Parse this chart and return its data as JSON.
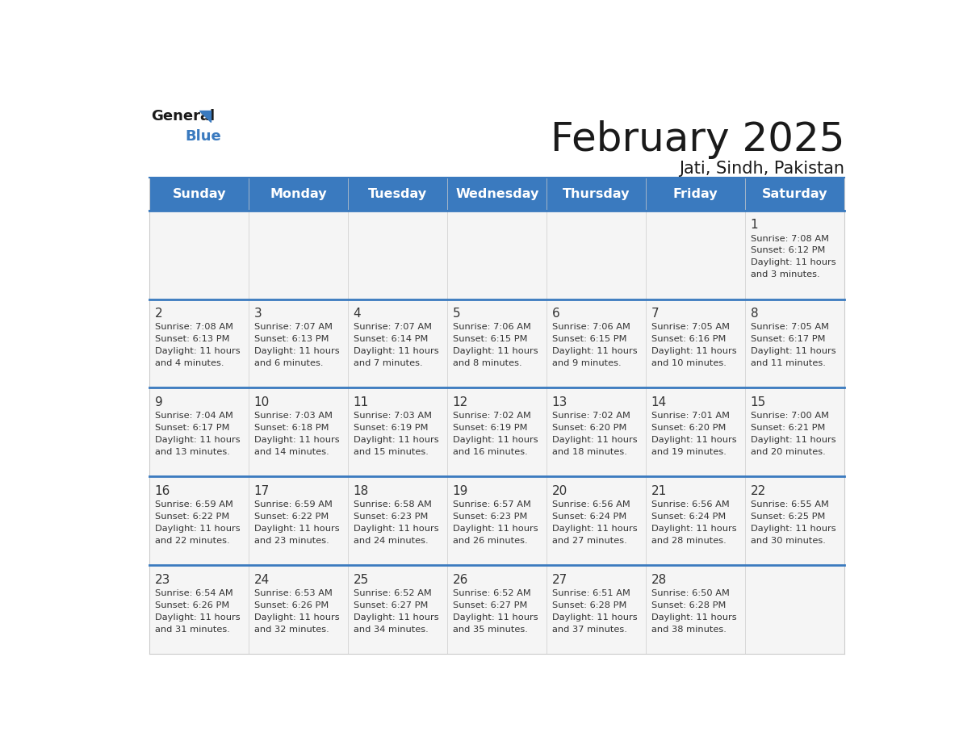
{
  "title": "February 2025",
  "subtitle": "Jati, Sindh, Pakistan",
  "header_color": "#3a7abf",
  "header_text_color": "#ffffff",
  "day_names": [
    "Sunday",
    "Monday",
    "Tuesday",
    "Wednesday",
    "Thursday",
    "Friday",
    "Saturday"
  ],
  "background_color": "#ffffff",
  "cell_bg_color": "#f5f5f5",
  "grid_line_color": "#3a7abf",
  "day_num_color": "#333333",
  "info_text_color": "#333333",
  "days": [
    {
      "day": 1,
      "col": 6,
      "row": 0,
      "sunrise": "7:08 AM",
      "sunset": "6:12 PM",
      "daylight": "11 hours and 3 minutes."
    },
    {
      "day": 2,
      "col": 0,
      "row": 1,
      "sunrise": "7:08 AM",
      "sunset": "6:13 PM",
      "daylight": "11 hours and 4 minutes."
    },
    {
      "day": 3,
      "col": 1,
      "row": 1,
      "sunrise": "7:07 AM",
      "sunset": "6:13 PM",
      "daylight": "11 hours and 6 minutes."
    },
    {
      "day": 4,
      "col": 2,
      "row": 1,
      "sunrise": "7:07 AM",
      "sunset": "6:14 PM",
      "daylight": "11 hours and 7 minutes."
    },
    {
      "day": 5,
      "col": 3,
      "row": 1,
      "sunrise": "7:06 AM",
      "sunset": "6:15 PM",
      "daylight": "11 hours and 8 minutes."
    },
    {
      "day": 6,
      "col": 4,
      "row": 1,
      "sunrise": "7:06 AM",
      "sunset": "6:15 PM",
      "daylight": "11 hours and 9 minutes."
    },
    {
      "day": 7,
      "col": 5,
      "row": 1,
      "sunrise": "7:05 AM",
      "sunset": "6:16 PM",
      "daylight": "11 hours and 10 minutes."
    },
    {
      "day": 8,
      "col": 6,
      "row": 1,
      "sunrise": "7:05 AM",
      "sunset": "6:17 PM",
      "daylight": "11 hours and 11 minutes."
    },
    {
      "day": 9,
      "col": 0,
      "row": 2,
      "sunrise": "7:04 AM",
      "sunset": "6:17 PM",
      "daylight": "11 hours and 13 minutes."
    },
    {
      "day": 10,
      "col": 1,
      "row": 2,
      "sunrise": "7:03 AM",
      "sunset": "6:18 PM",
      "daylight": "11 hours and 14 minutes."
    },
    {
      "day": 11,
      "col": 2,
      "row": 2,
      "sunrise": "7:03 AM",
      "sunset": "6:19 PM",
      "daylight": "11 hours and 15 minutes."
    },
    {
      "day": 12,
      "col": 3,
      "row": 2,
      "sunrise": "7:02 AM",
      "sunset": "6:19 PM",
      "daylight": "11 hours and 16 minutes."
    },
    {
      "day": 13,
      "col": 4,
      "row": 2,
      "sunrise": "7:02 AM",
      "sunset": "6:20 PM",
      "daylight": "11 hours and 18 minutes."
    },
    {
      "day": 14,
      "col": 5,
      "row": 2,
      "sunrise": "7:01 AM",
      "sunset": "6:20 PM",
      "daylight": "11 hours and 19 minutes."
    },
    {
      "day": 15,
      "col": 6,
      "row": 2,
      "sunrise": "7:00 AM",
      "sunset": "6:21 PM",
      "daylight": "11 hours and 20 minutes."
    },
    {
      "day": 16,
      "col": 0,
      "row": 3,
      "sunrise": "6:59 AM",
      "sunset": "6:22 PM",
      "daylight": "11 hours and 22 minutes."
    },
    {
      "day": 17,
      "col": 1,
      "row": 3,
      "sunrise": "6:59 AM",
      "sunset": "6:22 PM",
      "daylight": "11 hours and 23 minutes."
    },
    {
      "day": 18,
      "col": 2,
      "row": 3,
      "sunrise": "6:58 AM",
      "sunset": "6:23 PM",
      "daylight": "11 hours and 24 minutes."
    },
    {
      "day": 19,
      "col": 3,
      "row": 3,
      "sunrise": "6:57 AM",
      "sunset": "6:23 PM",
      "daylight": "11 hours and 26 minutes."
    },
    {
      "day": 20,
      "col": 4,
      "row": 3,
      "sunrise": "6:56 AM",
      "sunset": "6:24 PM",
      "daylight": "11 hours and 27 minutes."
    },
    {
      "day": 21,
      "col": 5,
      "row": 3,
      "sunrise": "6:56 AM",
      "sunset": "6:24 PM",
      "daylight": "11 hours and 28 minutes."
    },
    {
      "day": 22,
      "col": 6,
      "row": 3,
      "sunrise": "6:55 AM",
      "sunset": "6:25 PM",
      "daylight": "11 hours and 30 minutes."
    },
    {
      "day": 23,
      "col": 0,
      "row": 4,
      "sunrise": "6:54 AM",
      "sunset": "6:26 PM",
      "daylight": "11 hours and 31 minutes."
    },
    {
      "day": 24,
      "col": 1,
      "row": 4,
      "sunrise": "6:53 AM",
      "sunset": "6:26 PM",
      "daylight": "11 hours and 32 minutes."
    },
    {
      "day": 25,
      "col": 2,
      "row": 4,
      "sunrise": "6:52 AM",
      "sunset": "6:27 PM",
      "daylight": "11 hours and 34 minutes."
    },
    {
      "day": 26,
      "col": 3,
      "row": 4,
      "sunrise": "6:52 AM",
      "sunset": "6:27 PM",
      "daylight": "11 hours and 35 minutes."
    },
    {
      "day": 27,
      "col": 4,
      "row": 4,
      "sunrise": "6:51 AM",
      "sunset": "6:28 PM",
      "daylight": "11 hours and 37 minutes."
    },
    {
      "day": 28,
      "col": 5,
      "row": 4,
      "sunrise": "6:50 AM",
      "sunset": "6:28 PM",
      "daylight": "11 hours and 38 minutes."
    }
  ]
}
